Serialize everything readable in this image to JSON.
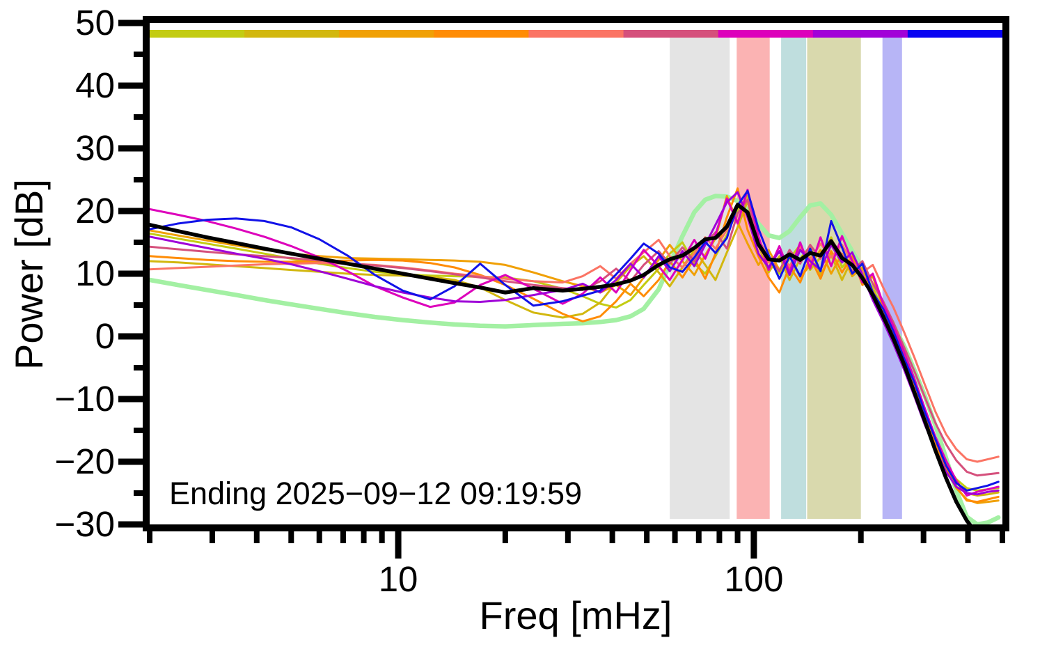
{
  "figure": {
    "background": "#ffffff",
    "frame_color": "#000000"
  },
  "axes": {
    "y_label": "Power [dB]",
    "x_label": "Freq [mHz]",
    "x_tick_labels": [
      {
        "value": 10,
        "label": "10"
      },
      {
        "value": 100,
        "label": "100"
      }
    ],
    "y_tick_labels": [
      {
        "value": 50,
        "label": "50"
      },
      {
        "value": 40,
        "label": "40"
      },
      {
        "value": 30,
        "label": "30"
      },
      {
        "value": 20,
        "label": "20"
      },
      {
        "value": 10,
        "label": "10"
      },
      {
        "value": 0,
        "label": "0"
      },
      {
        "value": -10,
        "label": "−10"
      },
      {
        "value": -20,
        "label": "−20"
      },
      {
        "value": -30,
        "label": "−30"
      }
    ]
  },
  "annotation": {
    "text": "Ending 2025−09−12 09:19:59"
  },
  "chart_data": {
    "type": "line",
    "title": "",
    "xlabel": "Freq [mHz]",
    "ylabel": "Power [dB]",
    "xscale": "log",
    "xlim": [
      2,
      500
    ],
    "ylim": [
      -30,
      50
    ],
    "grid": false,
    "legend_position": "none",
    "yticks_major": [
      50,
      40,
      30,
      20,
      10,
      0,
      -10,
      -20,
      -30
    ],
    "yticks_minor": [
      45,
      35,
      25,
      15,
      5,
      -5,
      -15,
      -25
    ],
    "xticks_major": [
      10,
      100
    ],
    "xticks_minor": [
      2,
      3,
      4,
      5,
      6,
      7,
      8,
      9,
      20,
      30,
      40,
      50,
      60,
      70,
      80,
      90,
      200,
      300,
      400,
      500
    ],
    "time_colorbar": {
      "description": "horizontal strip under top frame mapping curve color to time order",
      "segments": [
        "#c3cc12",
        "#d2b70e",
        "#f0a005",
        "#ff8c05",
        "#fb7464",
        "#d5507c",
        "#dd00bb",
        "#a201d8",
        "#0803f2"
      ]
    },
    "shaded_bands": [
      {
        "name": "band-gray",
        "f_range": [
          58.0,
          85.5
        ],
        "color": "#e4e4e4"
      },
      {
        "name": "band-pink",
        "f_range": [
          89.5,
          110.8
        ],
        "color": "#fbb3b3"
      },
      {
        "name": "band-teal",
        "f_range": [
          119.3,
          140.3
        ],
        "color": "#bfdede"
      },
      {
        "name": "band-olive",
        "f_range": [
          141.2,
          200.0
        ],
        "color": "#d9d9ad"
      },
      {
        "name": "band-lavender",
        "f_range": [
          230.0,
          261.0
        ],
        "color": "#b7b5f6"
      }
    ],
    "f": [
      2.0,
      2.4,
      2.9,
      3.5,
      4.2,
      5.0,
      6.0,
      7.2,
      8.6,
      10.3,
      12.3,
      14.4,
      17.0,
      20.0,
      24.0,
      29.0,
      33.0,
      37.0,
      41.0,
      45.0,
      49.0,
      54.0,
      58.0,
      63.0,
      68.0,
      73.0,
      78.0,
      84.0,
      90.0,
      96.0,
      103.0,
      110.0,
      118.0,
      126.0,
      135.0,
      144.0,
      154.0,
      165.0,
      177.0,
      189.0,
      202.0,
      216.0,
      231.0,
      247.0,
      265.0,
      283.0,
      303.0,
      324.0,
      347.0,
      371.0,
      397.0,
      425.0,
      455.0,
      487.0
    ],
    "series": [
      {
        "name": "smooth-reference",
        "color": "#a3f0a3",
        "width": 6.5,
        "dB": [
          9.0,
          8.2,
          7.4,
          6.6,
          5.8,
          5.1,
          4.4,
          3.7,
          3.1,
          2.6,
          2.2,
          1.9,
          1.7,
          1.6,
          1.8,
          2.0,
          2.1,
          2.3,
          2.6,
          3.2,
          4.4,
          7.5,
          11.5,
          16.0,
          19.8,
          21.8,
          22.4,
          22.3,
          21.6,
          20.2,
          18.0,
          16.1,
          15.7,
          16.8,
          19.0,
          20.9,
          21.2,
          19.4,
          16.4,
          13.6,
          10.8,
          8.0,
          5.0,
          1.8,
          -1.6,
          -5.4,
          -9.6,
          -14.2,
          -19.4,
          -24.6,
          -28.8,
          -30.0,
          -29.7,
          -28.9
        ]
      },
      {
        "name": "segment-1",
        "color": "#c3cc12",
        "width": 3,
        "dB": [
          16.4,
          15.6,
          14.8,
          14.0,
          13.2,
          12.4,
          11.6,
          10.9,
          10.3,
          9.9,
          9.7,
          9.6,
          9.5,
          9.4,
          8.8,
          7.6,
          6.4,
          5.2,
          4.6,
          5.8,
          8.2,
          10.8,
          13.2,
          15.0,
          11.6,
          10.0,
          12.8,
          16.2,
          20.2,
          22.4,
          15.2,
          12.0,
          10.0,
          12.4,
          14.6,
          10.6,
          12.6,
          15.8,
          11.0,
          12.8,
          9.2,
          7.8,
          4.0,
          0.4,
          -3.8,
          -8.0,
          -12.8,
          -17.2,
          -20.4,
          -22.8,
          -24.2,
          -24.6,
          -24.4,
          -24.2
        ]
      },
      {
        "name": "segment-2",
        "color": "#d2b70e",
        "width": 3,
        "dB": [
          12.0,
          11.8,
          11.5,
          11.2,
          10.9,
          10.6,
          10.3,
          10.0,
          9.8,
          9.7,
          9.5,
          9.0,
          7.8,
          5.8,
          3.8,
          3.0,
          3.6,
          5.4,
          8.6,
          11.2,
          12.8,
          10.2,
          8.0,
          11.0,
          13.8,
          11.4,
          9.0,
          13.4,
          17.4,
          21.6,
          14.6,
          10.2,
          12.8,
          9.0,
          12.4,
          14.4,
          9.8,
          13.0,
          9.0,
          12.4,
          10.6,
          6.2,
          3.0,
          -0.8,
          -5.0,
          -9.2,
          -13.8,
          -17.8,
          -21.0,
          -23.4,
          -25.0,
          -25.4,
          -25.2,
          -24.9
        ]
      },
      {
        "name": "segment-3",
        "color": "#f0a005",
        "width": 3,
        "dB": [
          16.9,
          16.1,
          15.3,
          14.5,
          13.8,
          13.2,
          12.8,
          12.5,
          12.4,
          12.3,
          12.2,
          12.1,
          11.9,
          11.4,
          10.2,
          8.8,
          8.0,
          7.0,
          8.2,
          6.6,
          9.4,
          12.2,
          14.6,
          12.0,
          9.8,
          13.0,
          15.6,
          22.4,
          18.2,
          14.8,
          11.4,
          13.8,
          10.6,
          13.0,
          9.4,
          11.4,
          13.8,
          10.0,
          13.2,
          9.6,
          11.0,
          7.2,
          3.8,
          0.2,
          -4.2,
          -8.6,
          -13.4,
          -17.6,
          -21.2,
          -24.2,
          -26.0,
          -26.6,
          -26.4,
          -26.2
        ]
      },
      {
        "name": "segment-4",
        "color": "#ff8c05",
        "width": 3,
        "dB": [
          12.8,
          12.5,
          12.2,
          12.0,
          11.9,
          11.9,
          12.0,
          12.1,
          12.2,
          12.1,
          11.7,
          11.0,
          9.8,
          8.2,
          6.0,
          3.6,
          2.4,
          3.2,
          5.6,
          8.4,
          6.4,
          9.0,
          12.0,
          9.4,
          12.4,
          9.2,
          13.2,
          19.0,
          23.6,
          17.0,
          12.8,
          9.4,
          7.0,
          11.2,
          8.6,
          12.6,
          9.2,
          13.6,
          10.2,
          12.8,
          8.2,
          9.6,
          4.6,
          1.0,
          -3.4,
          -7.8,
          -12.6,
          -17.0,
          -20.8,
          -24.0,
          -26.2,
          -26.4,
          -26.0,
          -25.6
        ]
      },
      {
        "name": "segment-5",
        "color": "#fb7464",
        "width": 3,
        "dB": [
          10.7,
          10.9,
          11.1,
          11.3,
          11.5,
          11.6,
          11.7,
          11.6,
          11.4,
          11.0,
          10.5,
          10.0,
          9.6,
          9.2,
          8.8,
          8.6,
          9.6,
          11.2,
          9.2,
          11.6,
          13.4,
          15.4,
          12.8,
          11.0,
          13.2,
          15.8,
          14.0,
          17.0,
          21.2,
          19.4,
          14.4,
          11.8,
          13.4,
          11.2,
          14.2,
          12.2,
          14.8,
          12.6,
          14.6,
          11.8,
          10.2,
          11.4,
          7.8,
          4.6,
          0.6,
          -3.4,
          -7.8,
          -12.0,
          -15.6,
          -18.0,
          -19.6,
          -20.0,
          -19.6,
          -19.2
        ]
      },
      {
        "name": "segment-6",
        "color": "#d5507c",
        "width": 3,
        "dB": [
          14.3,
          13.9,
          13.5,
          13.1,
          12.8,
          12.5,
          12.1,
          11.7,
          11.3,
          10.9,
          10.4,
          9.9,
          9.4,
          8.8,
          8.2,
          7.7,
          7.4,
          8.8,
          10.8,
          8.8,
          11.4,
          13.6,
          11.6,
          14.2,
          12.0,
          14.8,
          16.6,
          14.0,
          19.6,
          21.8,
          15.4,
          12.6,
          10.4,
          13.8,
          11.6,
          14.6,
          12.4,
          15.4,
          13.0,
          10.4,
          12.0,
          8.4,
          5.6,
          2.2,
          -1.8,
          -5.6,
          -9.8,
          -13.8,
          -17.2,
          -19.8,
          -21.6,
          -22.2,
          -22.0,
          -21.8
        ]
      },
      {
        "name": "segment-7",
        "color": "#dd00bb",
        "width": 3,
        "dB": [
          20.3,
          19.4,
          18.4,
          17.2,
          15.9,
          14.4,
          12.6,
          10.4,
          8.0,
          6.2,
          4.7,
          5.4,
          8.2,
          9.8,
          7.6,
          5.2,
          6.8,
          9.4,
          7.0,
          10.6,
          13.8,
          11.2,
          9.0,
          12.2,
          15.4,
          12.4,
          16.2,
          22.0,
          18.0,
          23.4,
          16.0,
          10.6,
          14.4,
          10.2,
          15.0,
          10.8,
          15.8,
          11.2,
          16.0,
          12.0,
          8.6,
          10.0,
          5.2,
          1.6,
          -2.6,
          -6.8,
          -11.6,
          -16.0,
          -19.8,
          -23.0,
          -25.4,
          -24.8,
          -24.4,
          -24.0
        ]
      },
      {
        "name": "segment-8",
        "color": "#9f01d8",
        "width": 3,
        "dB": [
          15.9,
          15.0,
          14.1,
          13.2,
          12.4,
          11.5,
          10.4,
          9.2,
          8.0,
          7.0,
          6.2,
          5.6,
          5.5,
          5.8,
          6.6,
          7.4,
          8.4,
          7.0,
          9.0,
          11.6,
          9.4,
          12.8,
          10.4,
          13.6,
          11.2,
          14.6,
          17.8,
          21.4,
          23.0,
          19.0,
          13.2,
          11.0,
          13.6,
          9.8,
          13.8,
          12.0,
          10.6,
          14.6,
          11.8,
          13.4,
          9.8,
          5.8,
          2.4,
          -1.2,
          -5.4,
          -9.6,
          -14.2,
          -18.0,
          -21.6,
          -24.0,
          -25.0,
          -25.2,
          -24.8,
          -24.6
        ]
      },
      {
        "name": "segment-9",
        "color": "#1212e8",
        "width": 3,
        "dB": [
          17.1,
          18.0,
          18.6,
          18.8,
          18.4,
          17.4,
          15.5,
          12.9,
          9.8,
          7.3,
          5.9,
          8.0,
          11.6,
          8.2,
          4.9,
          5.6,
          6.5,
          7.3,
          9.9,
          12.4,
          14.8,
          13.2,
          11.0,
          10.3,
          12.6,
          15.1,
          13.3,
          15.7,
          20.9,
          23.2,
          17.2,
          13.0,
          9.2,
          12.8,
          9.6,
          14.0,
          10.4,
          18.4,
          14.2,
          10.0,
          11.6,
          7.0,
          4.4,
          0.8,
          -3.6,
          -7.4,
          -12.2,
          -16.4,
          -20.6,
          -23.4,
          -24.6,
          -24.2,
          -23.8,
          -23.2
        ]
      },
      {
        "name": "mean",
        "color": "#000000",
        "width": 5.5,
        "dB": [
          17.8,
          16.8,
          15.8,
          14.9,
          14.0,
          13.2,
          12.4,
          11.6,
          10.8,
          10.0,
          9.2,
          8.5,
          7.8,
          7.0,
          7.7,
          7.3,
          7.6,
          7.9,
          8.3,
          8.9,
          9.8,
          11.4,
          12.3,
          12.9,
          14.1,
          15.5,
          15.7,
          17.5,
          21.0,
          19.8,
          14.7,
          12.3,
          12.1,
          13.1,
          12.2,
          13.3,
          12.9,
          15.2,
          12.5,
          11.4,
          9.3,
          6.6,
          3.2,
          -0.4,
          -4.6,
          -9.0,
          -13.6,
          -18.2,
          -22.6,
          -26.4,
          -29.4,
          -31.5,
          -33.0,
          -34.0
        ]
      }
    ]
  }
}
